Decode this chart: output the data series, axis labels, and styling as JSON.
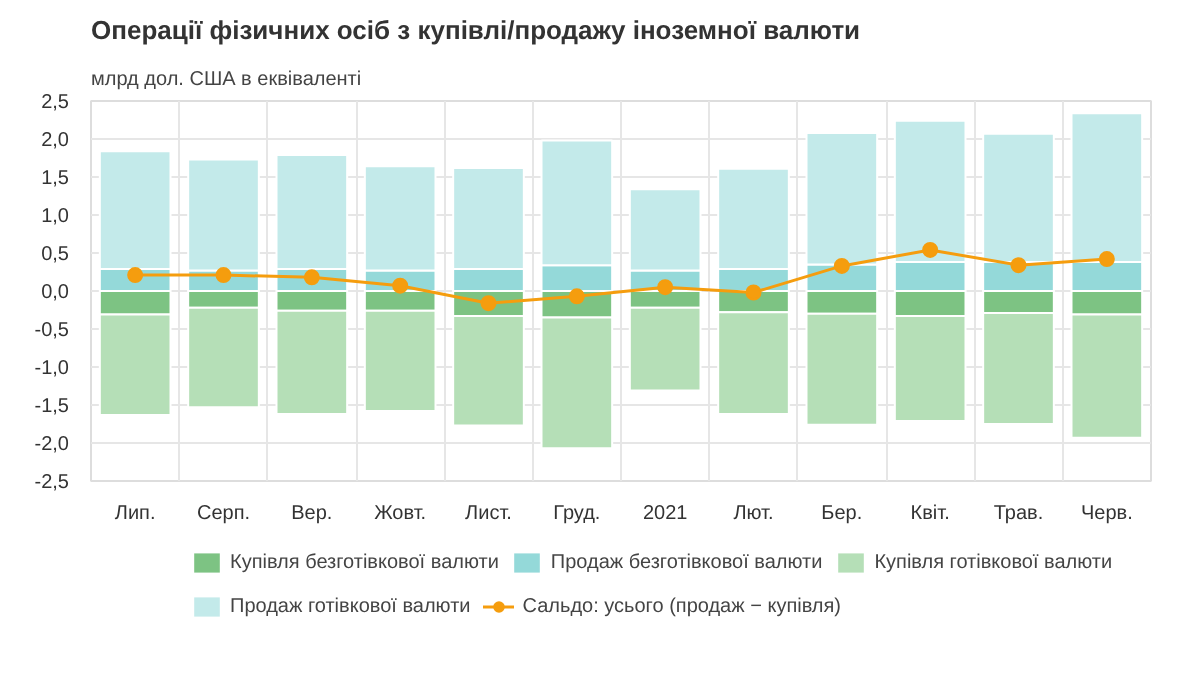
{
  "chart_data": {
    "type": "bar",
    "stacked": true,
    "title": "Операції фізичних осіб з купівлі/продажу іноземної валюти",
    "ylabel": "млрд дол. США в еквіваленті",
    "categories": [
      "Лип.",
      "Серп.",
      "Вер.",
      "Жовт.",
      "Лист.",
      "Груд.",
      "2021",
      "Лют.",
      "Бер.",
      "Квіт.",
      "Трав.",
      "Черв."
    ],
    "series": [
      {
        "name": "Купівля безготівкової валюти",
        "color": "#7dc383",
        "values": [
          -0.31,
          -0.22,
          -0.26,
          -0.26,
          -0.33,
          -0.35,
          -0.22,
          -0.28,
          -0.3,
          -0.33,
          -0.29,
          -0.31
        ]
      },
      {
        "name": "Продаж безготівкової валюти",
        "color": "#94d9d9",
        "values": [
          0.29,
          0.27,
          0.29,
          0.27,
          0.29,
          0.34,
          0.27,
          0.29,
          0.35,
          0.38,
          0.38,
          0.38
        ]
      },
      {
        "name": "Купівля готівкової валюти",
        "color": "#b5dfb7",
        "values": [
          -1.32,
          -1.31,
          -1.36,
          -1.32,
          -1.44,
          -1.72,
          -1.09,
          -1.34,
          -1.46,
          -1.38,
          -1.46,
          -1.62
        ]
      },
      {
        "name": "Продаж готівкової валюти",
        "color": "#c3eaea",
        "values": [
          1.55,
          1.46,
          1.5,
          1.37,
          1.33,
          1.64,
          1.07,
          1.32,
          1.73,
          1.86,
          1.69,
          1.96
        ]
      },
      {
        "name": "Сальдо: усього (продаж − купівля)",
        "type": "line",
        "color": "#f59d0e",
        "marker": "circle",
        "values": [
          0.21,
          0.21,
          0.18,
          0.07,
          -0.16,
          -0.07,
          0.05,
          -0.02,
          0.33,
          0.54,
          0.34,
          0.42
        ]
      }
    ],
    "ylim": [
      -2.5,
      2.5
    ],
    "yticks": [
      {
        "value": -2.5,
        "label": "-2,5"
      },
      {
        "value": -2,
        "label": "-2,0"
      },
      {
        "value": -1.5,
        "label": "-1,5"
      },
      {
        "value": -1,
        "label": "-1,0"
      },
      {
        "value": -0.5,
        "label": "-0,5"
      },
      {
        "value": 0,
        "label": "0,0"
      },
      {
        "value": 0.5,
        "label": "0,5"
      },
      {
        "value": 1,
        "label": "1,0"
      },
      {
        "value": 1.5,
        "label": "1,5"
      },
      {
        "value": 2,
        "label": "2,0"
      },
      {
        "value": 2.5,
        "label": "2,5"
      }
    ],
    "grid": true,
    "legend": "bottom"
  }
}
